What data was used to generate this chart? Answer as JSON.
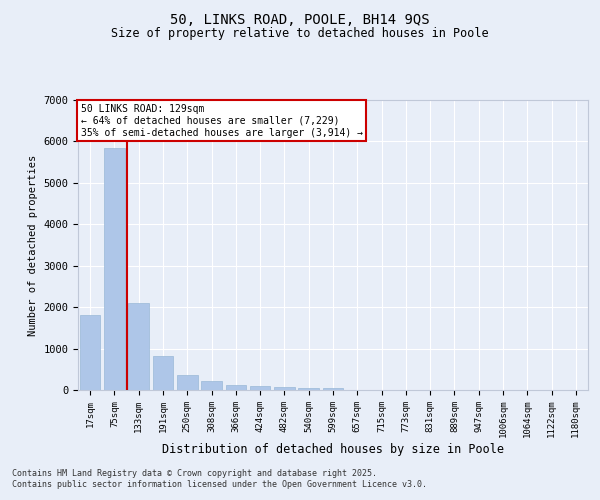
{
  "title1": "50, LINKS ROAD, POOLE, BH14 9QS",
  "title2": "Size of property relative to detached houses in Poole",
  "xlabel": "Distribution of detached houses by size in Poole",
  "ylabel": "Number of detached properties",
  "categories": [
    "17sqm",
    "75sqm",
    "133sqm",
    "191sqm",
    "250sqm",
    "308sqm",
    "366sqm",
    "424sqm",
    "482sqm",
    "540sqm",
    "599sqm",
    "657sqm",
    "715sqm",
    "773sqm",
    "831sqm",
    "889sqm",
    "947sqm",
    "1006sqm",
    "1064sqm",
    "1122sqm",
    "1180sqm"
  ],
  "values": [
    1800,
    5850,
    2100,
    820,
    370,
    210,
    120,
    90,
    80,
    55,
    40,
    0,
    0,
    0,
    0,
    0,
    0,
    0,
    0,
    0,
    0
  ],
  "bar_color": "#aec6e8",
  "bar_edge_color": "#9ab8d8",
  "vline_color": "#cc0000",
  "annotation_text": "50 LINKS ROAD: 129sqm\n← 64% of detached houses are smaller (7,229)\n35% of semi-detached houses are larger (3,914) →",
  "annotation_box_color": "#cc0000",
  "ylim": [
    0,
    7000
  ],
  "yticks": [
    0,
    1000,
    2000,
    3000,
    4000,
    5000,
    6000,
    7000
  ],
  "bg_color": "#e8eef8",
  "fig_bg_color": "#e8eef8",
  "grid_color": "#ffffff",
  "footer1": "Contains HM Land Registry data © Crown copyright and database right 2025.",
  "footer2": "Contains public sector information licensed under the Open Government Licence v3.0."
}
